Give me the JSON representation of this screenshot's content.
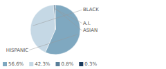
{
  "chart_data": {
    "type": "pie",
    "categories": [
      "HISPANIC",
      "BLACK",
      "A.I.",
      "ASIAN"
    ],
    "values": [
      56.6,
      42.3,
      0.8,
      0.3
    ],
    "value_labels": [
      "56.6%",
      "42.3%",
      "0.8%",
      "0.3%"
    ],
    "colors": [
      "#7fa8c0",
      "#c5d8e5",
      "#5a7f9a",
      "#1a3a5c"
    ],
    "legend": "bottom"
  }
}
